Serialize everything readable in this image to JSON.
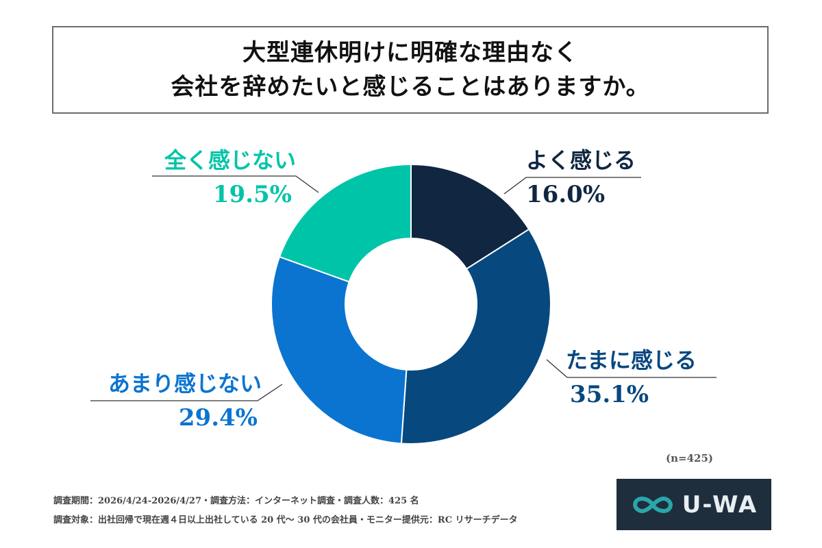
{
  "title": {
    "line1": "大型連休明けに明確な理由なく",
    "line2": "会社を辞めたいと感じることはありますか。"
  },
  "chart_data": {
    "type": "pie",
    "donut": true,
    "start": "12 o'clock, clockwise",
    "slices": [
      {
        "label": "よく感じる",
        "value": 16.0,
        "value_label": "16.0%",
        "color": "#102641"
      },
      {
        "label": "たまに感じる",
        "value": 35.1,
        "value_label": "35.1%",
        "color": "#07487f"
      },
      {
        "label": "あまり感じない",
        "value": 29.4,
        "value_label": "29.4%",
        "color": "#0b74d0"
      },
      {
        "label": "全く感じない",
        "value": 19.5,
        "value_label": "19.5%",
        "color": "#00c4a8"
      }
    ],
    "sample_size": "(n=425)"
  },
  "footer": {
    "line1": "調査期間：2026/4/24-2026/4/27・調査方法：インターネット調査・調査人数：425 名",
    "line2": "調査対象：出社回帰で現在週４日以上出社している 20 代〜 30 代の会社員・モニター提供元：RC リサーチデータ"
  },
  "logo": {
    "text": "U-WA",
    "icon": "infinity-icon",
    "background": "#1e2e3d",
    "icon_color": "#2aa6a9"
  }
}
